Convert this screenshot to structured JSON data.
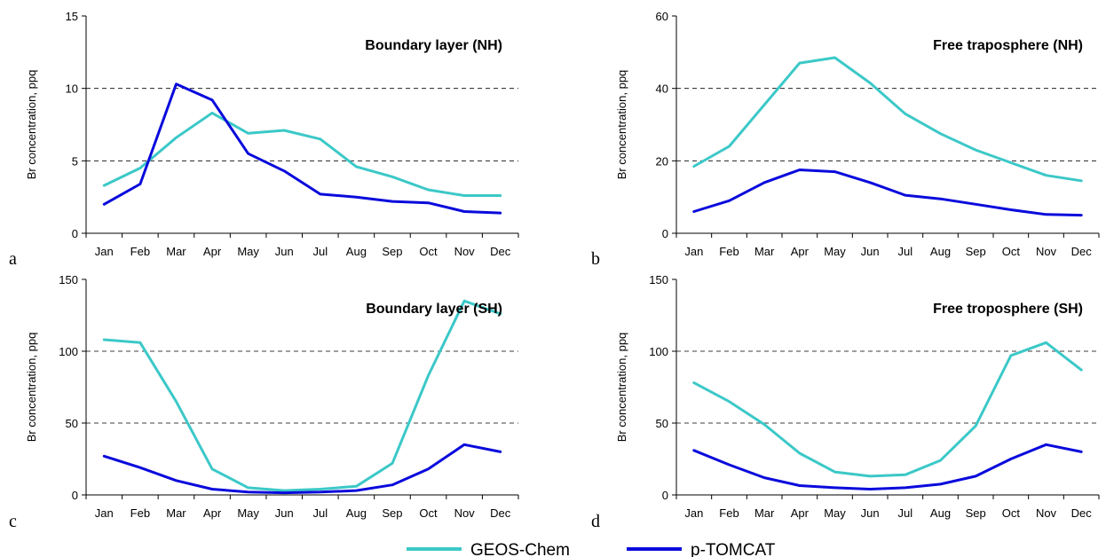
{
  "legend": {
    "items": [
      {
        "label": "GEOS-Chem",
        "color": "#3CC8C8"
      },
      {
        "label": "p-TOMCAT",
        "color": "#0A0ADC"
      }
    ]
  },
  "chart_data": [
    {
      "type": "line",
      "panel_label": "a",
      "title": "Boundary layer (NH)",
      "ylabel": "Br concentration, ppq",
      "xlabel": "",
      "categories": [
        "Jan",
        "Feb",
        "Mar",
        "Apr",
        "May",
        "Jun",
        "Jul",
        "Aug",
        "Sep",
        "Oct",
        "Nov",
        "Dec"
      ],
      "ylim": [
        0,
        15
      ],
      "yticks": [
        0,
        5,
        10,
        15
      ],
      "grid": "horizontal dashed",
      "series": [
        {
          "name": "GEOS-Chem",
          "color": "#3CC8C8",
          "values": [
            3.3,
            4.5,
            6.6,
            8.3,
            6.9,
            7.1,
            6.5,
            4.6,
            3.9,
            3.0,
            2.6,
            2.6
          ]
        },
        {
          "name": "p-TOMCAT",
          "color": "#0A0ADC",
          "values": [
            2.0,
            3.4,
            10.3,
            9.2,
            5.5,
            4.3,
            2.7,
            2.5,
            2.2,
            2.1,
            1.5,
            1.4
          ]
        }
      ]
    },
    {
      "type": "line",
      "panel_label": "b",
      "title": "Free traposphere (NH)",
      "ylabel": "Br concentration, ppq",
      "xlabel": "",
      "categories": [
        "Jan",
        "Feb",
        "Mar",
        "Apr",
        "May",
        "Jun",
        "Jul",
        "Aug",
        "Sep",
        "Oct",
        "Nov",
        "Dec"
      ],
      "ylim": [
        0,
        60
      ],
      "yticks": [
        0,
        20,
        40,
        60
      ],
      "grid": "horizontal dashed",
      "series": [
        {
          "name": "GEOS-Chem",
          "color": "#3CC8C8",
          "values": [
            18.5,
            24,
            35.5,
            47,
            48.5,
            41.5,
            33,
            27.5,
            23,
            19.5,
            16,
            14.5
          ]
        },
        {
          "name": "p-TOMCAT",
          "color": "#0A0ADC",
          "values": [
            6,
            9,
            14,
            17.5,
            17,
            14,
            10.5,
            9.5,
            8,
            6.5,
            5.2,
            5
          ]
        }
      ]
    },
    {
      "type": "line",
      "panel_label": "c",
      "title": "Boundary layer (SH)",
      "ylabel": "Br concentration, ppq",
      "xlabel": "",
      "categories": [
        "Jan",
        "Feb",
        "Mar",
        "Apr",
        "May",
        "Jun",
        "Jul",
        "Aug",
        "Sep",
        "Oct",
        "Nov",
        "Dec"
      ],
      "ylim": [
        0,
        150
      ],
      "yticks": [
        0,
        50,
        100,
        150
      ],
      "grid": "horizontal dashed",
      "series": [
        {
          "name": "GEOS-Chem",
          "color": "#3CC8C8",
          "values": [
            108,
            106,
            65,
            18,
            5,
            3,
            4,
            6,
            22,
            83,
            135,
            126
          ]
        },
        {
          "name": "p-TOMCAT",
          "color": "#0A0ADC",
          "values": [
            27,
            19,
            10,
            4,
            2,
            1.5,
            2,
            3,
            7,
            18,
            35,
            30
          ]
        }
      ]
    },
    {
      "type": "line",
      "panel_label": "d",
      "title": "Free troposphere (SH)",
      "ylabel": "Br concentration, ppq",
      "xlabel": "",
      "categories": [
        "Jan",
        "Feb",
        "Mar",
        "Apr",
        "May",
        "Jun",
        "Jul",
        "Aug",
        "Sep",
        "Oct",
        "Nov",
        "Dec"
      ],
      "ylim": [
        0,
        150
      ],
      "yticks": [
        0,
        50,
        100,
        150
      ],
      "grid": "horizontal dashed",
      "series": [
        {
          "name": "GEOS-Chem",
          "color": "#3CC8C8",
          "values": [
            78,
            65,
            49,
            29,
            16,
            13,
            14,
            24,
            48,
            97,
            106,
            87
          ]
        },
        {
          "name": "p-TOMCAT",
          "color": "#0A0ADC",
          "values": [
            31,
            21,
            12,
            6.5,
            5,
            4,
            5,
            7.5,
            13,
            25,
            35,
            30
          ]
        }
      ]
    }
  ]
}
